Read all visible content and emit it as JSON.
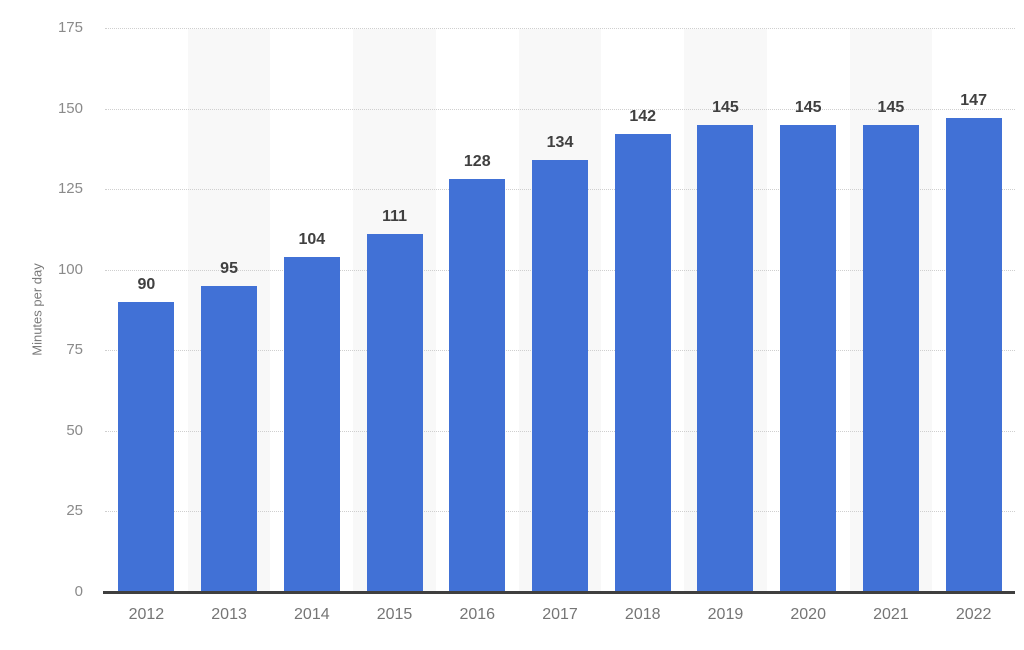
{
  "chart_data": {
    "type": "bar",
    "title": "",
    "xlabel": "",
    "ylabel": "Minutes per day",
    "categories": [
      "2012",
      "2013",
      "2014",
      "2015",
      "2016",
      "2017",
      "2018",
      "2019",
      "2020",
      "2021",
      "2022"
    ],
    "values": [
      90,
      95,
      104,
      111,
      128,
      134,
      142,
      145,
      145,
      145,
      147
    ],
    "ylim": [
      0,
      175
    ],
    "yticks": [
      0,
      25,
      50,
      75,
      100,
      125,
      150,
      175
    ],
    "grid": "horizontal-dotted",
    "legend_position": "none",
    "value_labels": "above-bars",
    "colors": {
      "bar": "#4171d6",
      "column_band": "#f8f8f8",
      "gridline": "#cfcfcf",
      "baseline": "#3f3f3f",
      "value_label": "#404040",
      "x_tick_label": "#757575",
      "y_tick_label": "#8a8a8a",
      "y_axis_title": "#7a7a7a",
      "background": "#ffffff"
    }
  }
}
